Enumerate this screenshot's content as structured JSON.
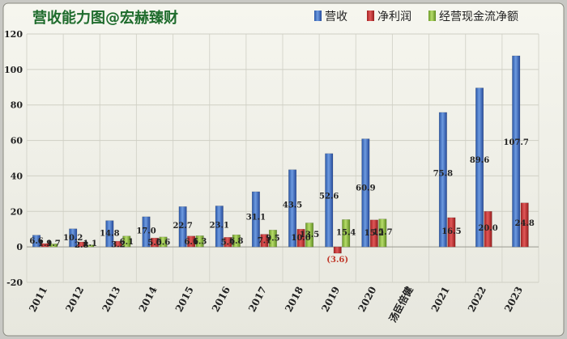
{
  "chart_data": {
    "type": "bar",
    "title": "营收能力图@宏赫臻财",
    "categories": [
      "2011",
      "2012",
      "2013",
      "2014",
      "2015",
      "2016",
      "2017",
      "2018",
      "2019",
      "2020",
      "汤臣倍健",
      "2021",
      "2022",
      "2023"
    ],
    "ylim": [
      -20,
      120
    ],
    "yticks": [
      -20,
      0,
      20,
      40,
      60,
      80,
      100,
      120
    ],
    "grid": true,
    "legend_position": "top-right",
    "series": [
      {
        "name": "营收",
        "color": "#3a6fc4",
        "values": [
          6.6,
          10.2,
          14.8,
          17.0,
          22.7,
          23.1,
          31.1,
          43.5,
          52.6,
          60.9,
          null,
          75.8,
          89.6,
          107.7
        ],
        "labels": [
          "6.6",
          "10.2",
          "14.8",
          "17.0",
          "22.7",
          "23.1",
          "31.1",
          "43.5",
          "52.6",
          "60.9",
          "",
          "75.8",
          "89.6",
          "107.7"
        ]
      },
      {
        "name": "净利润",
        "color": "#c93434",
        "values": [
          1.9,
          2.8,
          3.2,
          5.0,
          6.1,
          5.4,
          7.1,
          10.0,
          -3.6,
          15.2,
          null,
          16.5,
          20.0,
          24.8
        ],
        "labels": [
          "1.9",
          "2.8",
          "3.2",
          "5.0",
          "6.1",
          "5.4",
          "7.1",
          "10.0",
          "(3.6)",
          "15.2",
          "",
          "16.5",
          "20.0",
          "24.8"
        ]
      },
      {
        "name": "经营现金流净额",
        "color": "#8ab83b",
        "values": [
          1.7,
          1.1,
          6.1,
          5.6,
          6.3,
          6.8,
          9.5,
          13.5,
          15.4,
          15.7,
          null,
          null,
          null,
          null
        ],
        "labels": [
          "1.7",
          "1.1",
          "6.1",
          "5.6",
          "6.3",
          "6.8",
          "9.5",
          "13.5",
          "15.4",
          "15.7",
          "",
          "",
          "",
          ""
        ]
      }
    ]
  }
}
